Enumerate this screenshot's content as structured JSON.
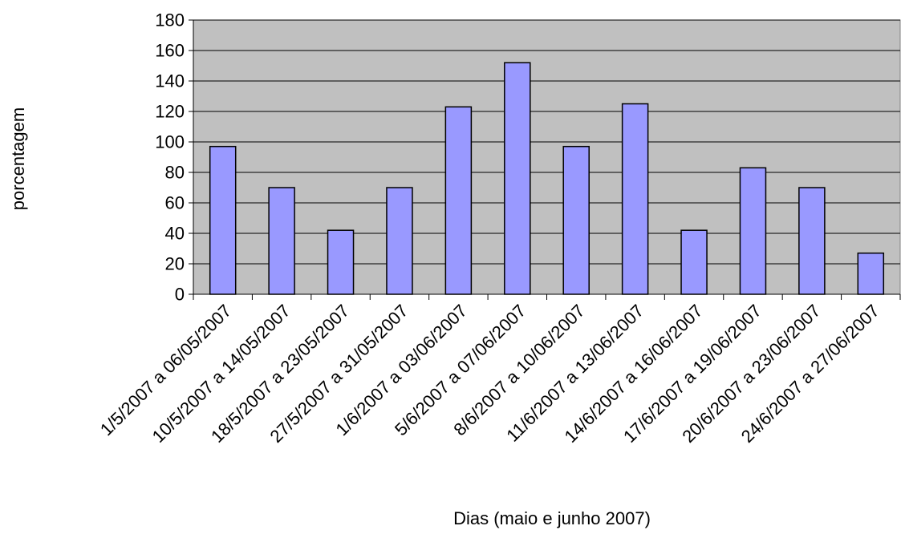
{
  "chart_data": {
    "type": "bar",
    "categories": [
      "1/5/2007 a 06/05/2007",
      "10/5/2007 a 14/05/2007",
      "18/5/2007 a 23/05/2007",
      "27/5/2007 a 31/05/2007",
      "1/6/2007 a 03/06/2007",
      "5/6/2007 a 07/06/2007",
      "8/6/2007 a 10/06/2007",
      "11/6/2007 a 13/06/2007",
      "14/6/2007 a 16/06/2007",
      "17/6/2007 a 19/06/2007",
      "20/6/2007 a 23/06/2007",
      "24/6/2007 a 27/06/2007"
    ],
    "values": [
      97,
      70,
      42,
      70,
      123,
      152,
      97,
      125,
      42,
      83,
      70,
      27
    ],
    "xlabel": "Dias (maio e junho 2007)",
    "ylabel": "porcentagem",
    "ylim": [
      0,
      180
    ],
    "yticks": [
      "0",
      "20",
      "40",
      "60",
      "80",
      "100",
      "120",
      "140",
      "160",
      "180"
    ],
    "grid": true,
    "colors": {
      "plot_background": "#c0c0c0",
      "bar_fill": "#9999ff",
      "bar_stroke": "#000000",
      "gridline": "#000000"
    }
  }
}
